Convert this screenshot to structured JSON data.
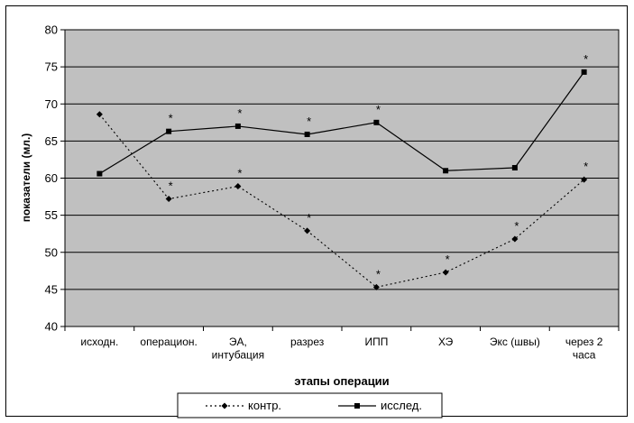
{
  "chart_data": {
    "type": "line",
    "title": "",
    "xlabel": "этапы операции",
    "ylabel": "показатели (мл.)",
    "ylim": [
      40,
      80
    ],
    "yticks": [
      40,
      45,
      50,
      55,
      60,
      65,
      70,
      75,
      80
    ],
    "grid": true,
    "legend_position": "bottom",
    "categories": [
      [
        "исходн."
      ],
      [
        "операцион."
      ],
      [
        "ЭА,",
        "интубация"
      ],
      [
        "разрез"
      ],
      [
        "ИПП"
      ],
      [
        "ХЭ"
      ],
      [
        "Экс (швы)"
      ],
      [
        "через 2",
        "часа"
      ]
    ],
    "series": [
      {
        "name": "контр.",
        "marker": "diamond",
        "style": "dotted",
        "values": [
          68.6,
          57.2,
          58.9,
          52.9,
          45.3,
          47.3,
          51.8,
          59.8
        ],
        "significance": [
          "",
          "*",
          "*",
          "*",
          "*",
          "*",
          "*",
          "*"
        ]
      },
      {
        "name": "исслед.",
        "marker": "square",
        "style": "solid",
        "values": [
          60.6,
          66.3,
          67.0,
          65.9,
          67.5,
          61.0,
          61.4,
          74.3
        ],
        "significance": [
          "",
          "*",
          "*",
          "*",
          "*",
          "",
          "",
          "*"
        ]
      }
    ],
    "colors": {
      "plot_bg": "#c0c0c0",
      "line": "#000000",
      "grid": "#000000"
    }
  }
}
